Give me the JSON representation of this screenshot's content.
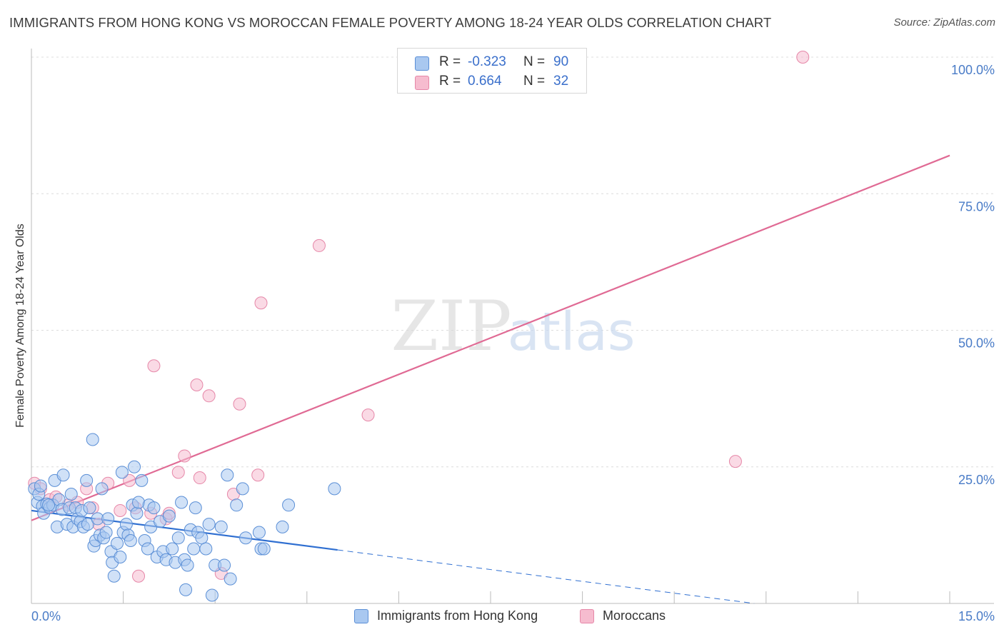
{
  "header": {
    "title": "IMMIGRANTS FROM HONG KONG VS MOROCCAN FEMALE POVERTY AMONG 18-24 YEAR OLDS CORRELATION CHART",
    "source": "Source: ZipAtlas.com"
  },
  "watermark": {
    "zip": "ZIP",
    "atlas": "atlas"
  },
  "legend": {
    "rows": [
      {
        "r_label": "R =",
        "r_value": "-0.323",
        "n_label": "N =",
        "n_value": "90"
      },
      {
        "r_label": "R =",
        "r_value": "0.664",
        "n_label": "N =",
        "n_value": "32"
      }
    ]
  },
  "chart_data": {
    "type": "scatter",
    "title": "IMMIGRANTS FROM HONG KONG VS MOROCCAN FEMALE POVERTY AMONG 18-24 YEAR OLDS CORRELATION CHART",
    "xlabel": "",
    "ylabel": "Female Poverty Among 18-24 Year Olds",
    "xlim": [
      0,
      15
    ],
    "ylim": [
      0,
      100
    ],
    "x_tick_labels": [
      "0.0%",
      "15.0%"
    ],
    "x_tick_values": [
      0,
      15
    ],
    "x_minor_ticks": [
      1.5,
      3,
      4.5,
      6,
      7.5,
      9,
      10.5,
      12,
      13.5,
      15
    ],
    "y_ticks": [
      {
        "value": 25,
        "label": "25.0%"
      },
      {
        "value": 50,
        "label": "50.0%"
      },
      {
        "value": 75,
        "label": "75.0%"
      },
      {
        "value": 100,
        "label": "100.0%"
      }
    ],
    "grid": "horizontal-dashed",
    "legend_position": "top-center",
    "colors": {
      "blue_fill": "#a9c8f0",
      "blue_stroke": "#5b8fd6",
      "blue_line": "#2f6fd1",
      "pink_fill": "#f6bccf",
      "pink_stroke": "#e687a8",
      "pink_line": "#e06a94"
    },
    "series": [
      {
        "name": "Immigrants from Hong Kong",
        "color": "#a9c8f0",
        "trend": {
          "x0": 0,
          "y0": 17.0,
          "x1": 5.0,
          "y1": 9.8,
          "dashed_to_x": 15,
          "dashed_to_y": -4.6
        },
        "points": [
          [
            0.05,
            21.0
          ],
          [
            0.1,
            18.5
          ],
          [
            0.12,
            20.0
          ],
          [
            0.18,
            17.8
          ],
          [
            0.2,
            16.5
          ],
          [
            0.25,
            18.2
          ],
          [
            0.3,
            17.5
          ],
          [
            0.35,
            18.0
          ],
          [
            0.38,
            22.5
          ],
          [
            0.42,
            14.0
          ],
          [
            0.45,
            19.0
          ],
          [
            0.5,
            17.2
          ],
          [
            0.52,
            23.5
          ],
          [
            0.58,
            14.5
          ],
          [
            0.62,
            17.5
          ],
          [
            0.65,
            20.0
          ],
          [
            0.68,
            14.0
          ],
          [
            0.72,
            17.5
          ],
          [
            0.75,
            15.5
          ],
          [
            0.8,
            15.0
          ],
          [
            0.82,
            17.0
          ],
          [
            0.85,
            14.0
          ],
          [
            0.9,
            22.5
          ],
          [
            0.92,
            14.5
          ],
          [
            0.95,
            17.5
          ],
          [
            1.0,
            30.0
          ],
          [
            1.02,
            10.5
          ],
          [
            1.05,
            11.5
          ],
          [
            1.08,
            15.5
          ],
          [
            1.12,
            12.5
          ],
          [
            1.15,
            21.0
          ],
          [
            1.18,
            12.0
          ],
          [
            1.22,
            13.0
          ],
          [
            1.25,
            15.5
          ],
          [
            1.3,
            9.5
          ],
          [
            1.32,
            7.5
          ],
          [
            1.35,
            5.0
          ],
          [
            1.4,
            11.0
          ],
          [
            1.45,
            8.5
          ],
          [
            1.48,
            24.0
          ],
          [
            1.5,
            13.0
          ],
          [
            1.55,
            14.5
          ],
          [
            1.58,
            12.5
          ],
          [
            1.62,
            11.5
          ],
          [
            1.65,
            18.0
          ],
          [
            1.68,
            25.0
          ],
          [
            1.72,
            16.5
          ],
          [
            1.75,
            18.5
          ],
          [
            1.8,
            22.5
          ],
          [
            1.85,
            11.5
          ],
          [
            1.9,
            10.0
          ],
          [
            1.92,
            18.0
          ],
          [
            1.95,
            14.0
          ],
          [
            2.0,
            17.5
          ],
          [
            2.05,
            8.5
          ],
          [
            2.1,
            15.0
          ],
          [
            2.15,
            9.5
          ],
          [
            2.2,
            8.0
          ],
          [
            2.25,
            16.0
          ],
          [
            2.3,
            10.0
          ],
          [
            2.35,
            7.5
          ],
          [
            2.4,
            12.0
          ],
          [
            2.45,
            18.5
          ],
          [
            2.5,
            8.0
          ],
          [
            2.52,
            2.5
          ],
          [
            2.55,
            7.0
          ],
          [
            2.6,
            13.5
          ],
          [
            2.65,
            10.0
          ],
          [
            2.68,
            17.5
          ],
          [
            2.72,
            13.0
          ],
          [
            2.78,
            12.0
          ],
          [
            2.85,
            10.0
          ],
          [
            2.9,
            14.5
          ],
          [
            2.95,
            1.5
          ],
          [
            3.0,
            7.0
          ],
          [
            3.1,
            14.0
          ],
          [
            3.15,
            7.0
          ],
          [
            3.2,
            23.5
          ],
          [
            3.25,
            4.5
          ],
          [
            3.35,
            18.0
          ],
          [
            3.45,
            21.0
          ],
          [
            3.5,
            12.0
          ],
          [
            3.72,
            13.0
          ],
          [
            3.75,
            10.0
          ],
          [
            3.8,
            10.0
          ],
          [
            4.1,
            14.0
          ],
          [
            4.2,
            18.0
          ],
          [
            4.95,
            21.0
          ],
          [
            0.15,
            21.5
          ],
          [
            0.28,
            18.0
          ]
        ]
      },
      {
        "name": "Moroccans",
        "color": "#f6bccf",
        "trend": {
          "x0": 0,
          "y0": 15.2,
          "x1": 15,
          "y1": 82.0
        },
        "points": [
          [
            0.05,
            22.0
          ],
          [
            0.15,
            21.0
          ],
          [
            0.3,
            19.0
          ],
          [
            0.4,
            19.5
          ],
          [
            0.6,
            18.0
          ],
          [
            0.75,
            18.5
          ],
          [
            0.9,
            21.0
          ],
          [
            1.0,
            17.5
          ],
          [
            1.1,
            14.5
          ],
          [
            1.25,
            22.0
          ],
          [
            1.45,
            17.0
          ],
          [
            1.6,
            22.5
          ],
          [
            1.7,
            17.5
          ],
          [
            1.75,
            5.0
          ],
          [
            1.95,
            16.5
          ],
          [
            2.0,
            43.5
          ],
          [
            2.2,
            15.5
          ],
          [
            2.25,
            16.5
          ],
          [
            2.4,
            24.0
          ],
          [
            2.5,
            27.0
          ],
          [
            2.7,
            40.0
          ],
          [
            2.75,
            23.0
          ],
          [
            2.9,
            38.0
          ],
          [
            3.1,
            5.5
          ],
          [
            3.3,
            20.0
          ],
          [
            3.4,
            36.5
          ],
          [
            3.7,
            23.5
          ],
          [
            3.75,
            55.0
          ],
          [
            4.7,
            65.5
          ],
          [
            5.5,
            34.5
          ],
          [
            11.5,
            26.0
          ],
          [
            12.6,
            100.0
          ]
        ]
      }
    ]
  }
}
